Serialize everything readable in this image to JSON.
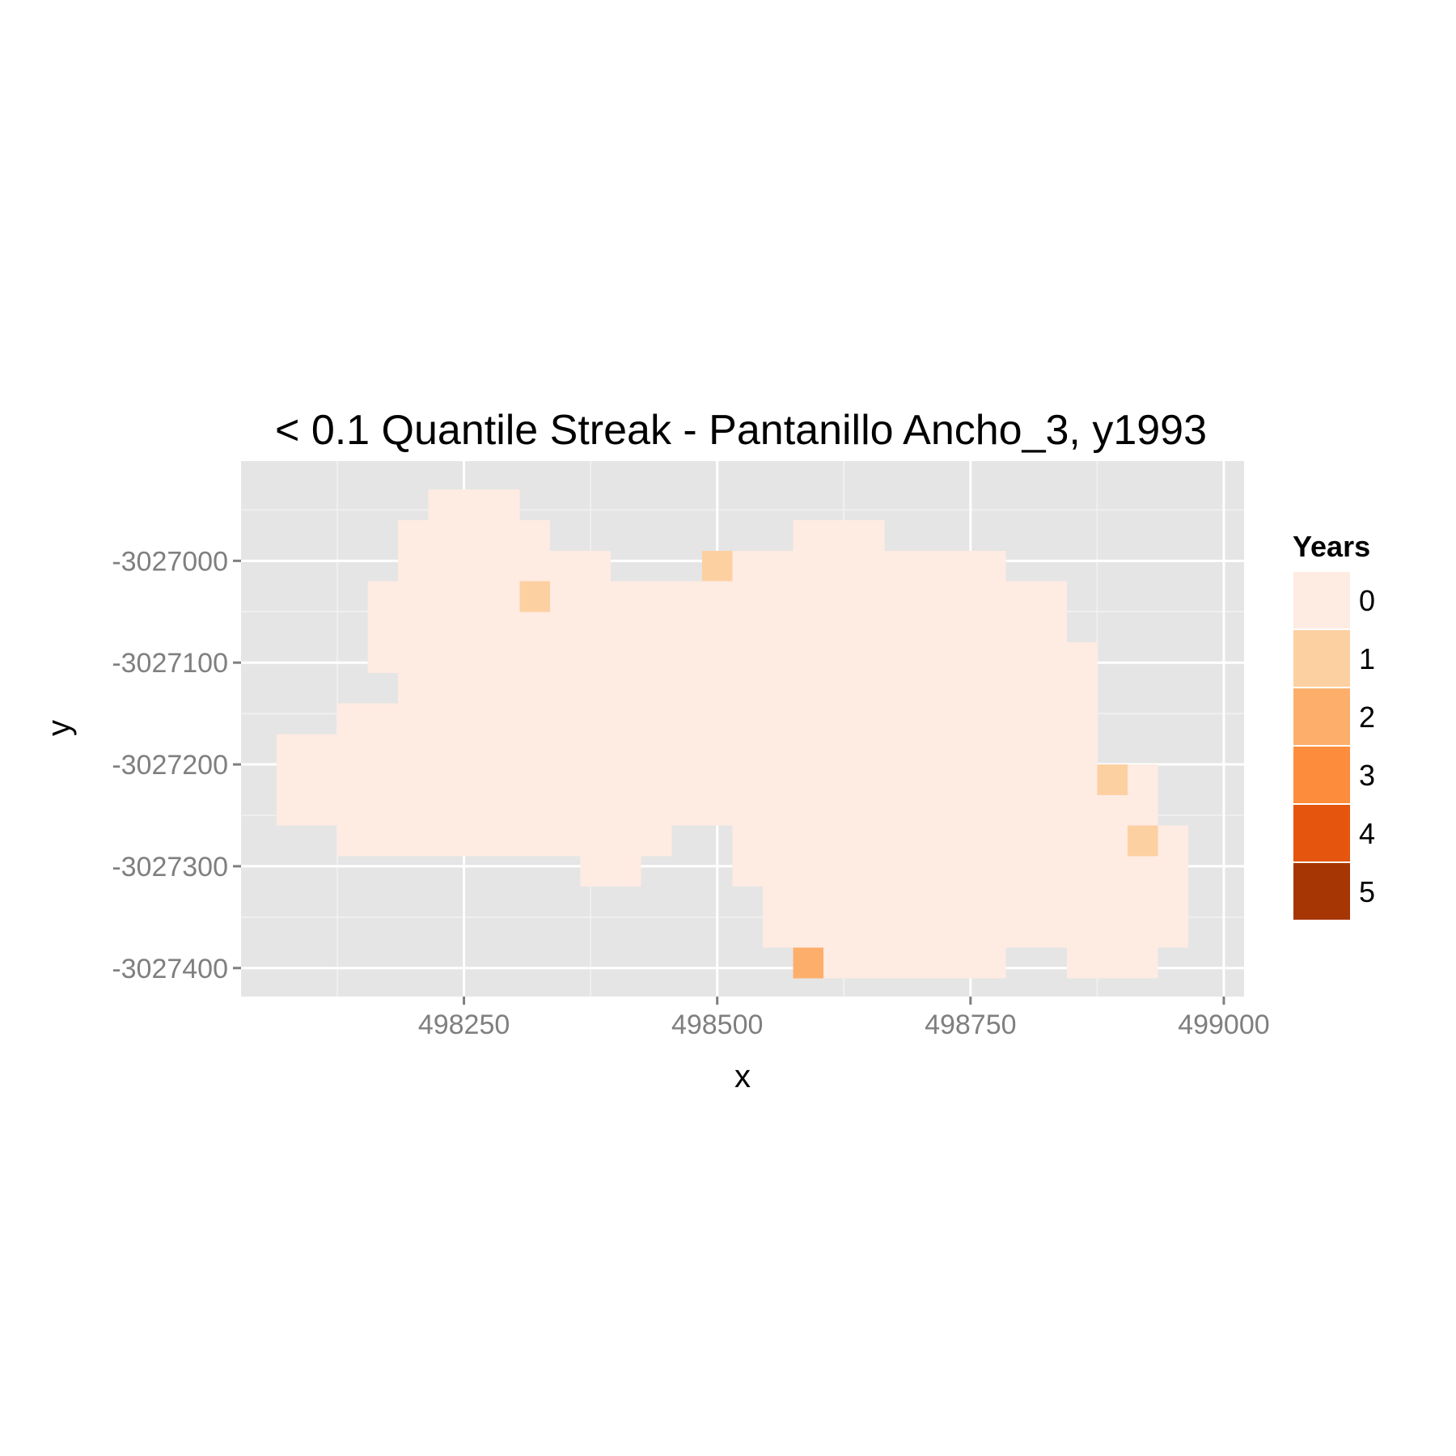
{
  "chart_data": {
    "type": "heatmap",
    "title": "< 0.1 Quantile Streak - Pantanillo Ancho_3, y1993",
    "xlabel": "x",
    "ylabel": "y",
    "xlim": [
      498030,
      499020
    ],
    "ylim": [
      -3027428,
      -3026902
    ],
    "x_ticks": [
      498250,
      498500,
      498750,
      499000
    ],
    "x_tick_labels": [
      "498250",
      "498500",
      "498750",
      "499000"
    ],
    "x_minor": [
      498125,
      498375,
      498625,
      498875
    ],
    "y_ticks": [
      -3027000,
      -3027100,
      -3027200,
      -3027300,
      -3027400
    ],
    "y_tick_labels": [
      "-3027000",
      "-3027100",
      "-3027200",
      "-3027300",
      "-3027400"
    ],
    "y_minor": [
      -3026950,
      -3027050,
      -3027150,
      -3027250,
      -3027350
    ],
    "cell_size": 30,
    "grid": true,
    "legend": {
      "title": "Years",
      "position": "right",
      "levels": [
        "0",
        "1",
        "2",
        "3",
        "4",
        "5"
      ],
      "colors": [
        "#feebe2",
        "#fdd0a2",
        "#fdae6b",
        "#fd8d3c",
        "#e6550d",
        "#a63603"
      ]
    },
    "cells": [
      {
        "x0": 498215,
        "x1": 498305,
        "y0": -3026930,
        "y1": -3026960,
        "value": 0
      },
      {
        "x0": 498185,
        "x1": 498335,
        "y0": -3026960,
        "y1": -3026990,
        "value": 0
      },
      {
        "x0": 498575,
        "x1": 498665,
        "y0": -3026960,
        "y1": -3026990,
        "value": 0
      },
      {
        "x0": 498185,
        "x1": 498395,
        "y0": -3026990,
        "y1": -3027020,
        "value": 0
      },
      {
        "x0": 498515,
        "x1": 498785,
        "y0": -3026990,
        "y1": -3027020,
        "value": 0
      },
      {
        "x0": 498485,
        "x1": 498515,
        "y0": -3026990,
        "y1": -3027020,
        "value": 1
      },
      {
        "x0": 498155,
        "x1": 498845,
        "y0": -3027020,
        "y1": -3027050,
        "value": 0
      },
      {
        "x0": 498305,
        "x1": 498335,
        "y0": -3027020,
        "y1": -3027050,
        "value": 1
      },
      {
        "x0": 498155,
        "x1": 498845,
        "y0": -3027050,
        "y1": -3027080,
        "value": 0
      },
      {
        "x0": 498155,
        "x1": 498875,
        "y0": -3027080,
        "y1": -3027110,
        "value": 0
      },
      {
        "x0": 498185,
        "x1": 498875,
        "y0": -3027110,
        "y1": -3027140,
        "value": 0
      },
      {
        "x0": 498125,
        "x1": 498875,
        "y0": -3027140,
        "y1": -3027170,
        "value": 0
      },
      {
        "x0": 498065,
        "x1": 498875,
        "y0": -3027170,
        "y1": -3027200,
        "value": 0
      },
      {
        "x0": 498065,
        "x1": 498875,
        "y0": -3027200,
        "y1": -3027230,
        "value": 0
      },
      {
        "x0": 498905,
        "x1": 498935,
        "y0": -3027200,
        "y1": -3027230,
        "value": 0
      },
      {
        "x0": 498875,
        "x1": 498905,
        "y0": -3027200,
        "y1": -3027230,
        "value": 1
      },
      {
        "x0": 498065,
        "x1": 498935,
        "y0": -3027230,
        "y1": -3027260,
        "value": 0
      },
      {
        "x0": 498125,
        "x1": 498455,
        "y0": -3027260,
        "y1": -3027290,
        "value": 0
      },
      {
        "x0": 498515,
        "x1": 498905,
        "y0": -3027260,
        "y1": -3027290,
        "value": 0
      },
      {
        "x0": 498935,
        "x1": 498965,
        "y0": -3027260,
        "y1": -3027290,
        "value": 0
      },
      {
        "x0": 498905,
        "x1": 498935,
        "y0": -3027260,
        "y1": -3027290,
        "value": 1
      },
      {
        "x0": 498365,
        "x1": 498425,
        "y0": -3027290,
        "y1": -3027320,
        "value": 0
      },
      {
        "x0": 498515,
        "x1": 498965,
        "y0": -3027290,
        "y1": -3027320,
        "value": 0
      },
      {
        "x0": 498545,
        "x1": 498965,
        "y0": -3027320,
        "y1": -3027350,
        "value": 0
      },
      {
        "x0": 498545,
        "x1": 498965,
        "y0": -3027350,
        "y1": -3027380,
        "value": 0
      },
      {
        "x0": 498605,
        "x1": 498785,
        "y0": -3027380,
        "y1": -3027410,
        "value": 0
      },
      {
        "x0": 498845,
        "x1": 498935,
        "y0": -3027380,
        "y1": -3027410,
        "value": 0
      },
      {
        "x0": 498575,
        "x1": 498605,
        "y0": -3027380,
        "y1": -3027410,
        "value": 2
      }
    ]
  }
}
